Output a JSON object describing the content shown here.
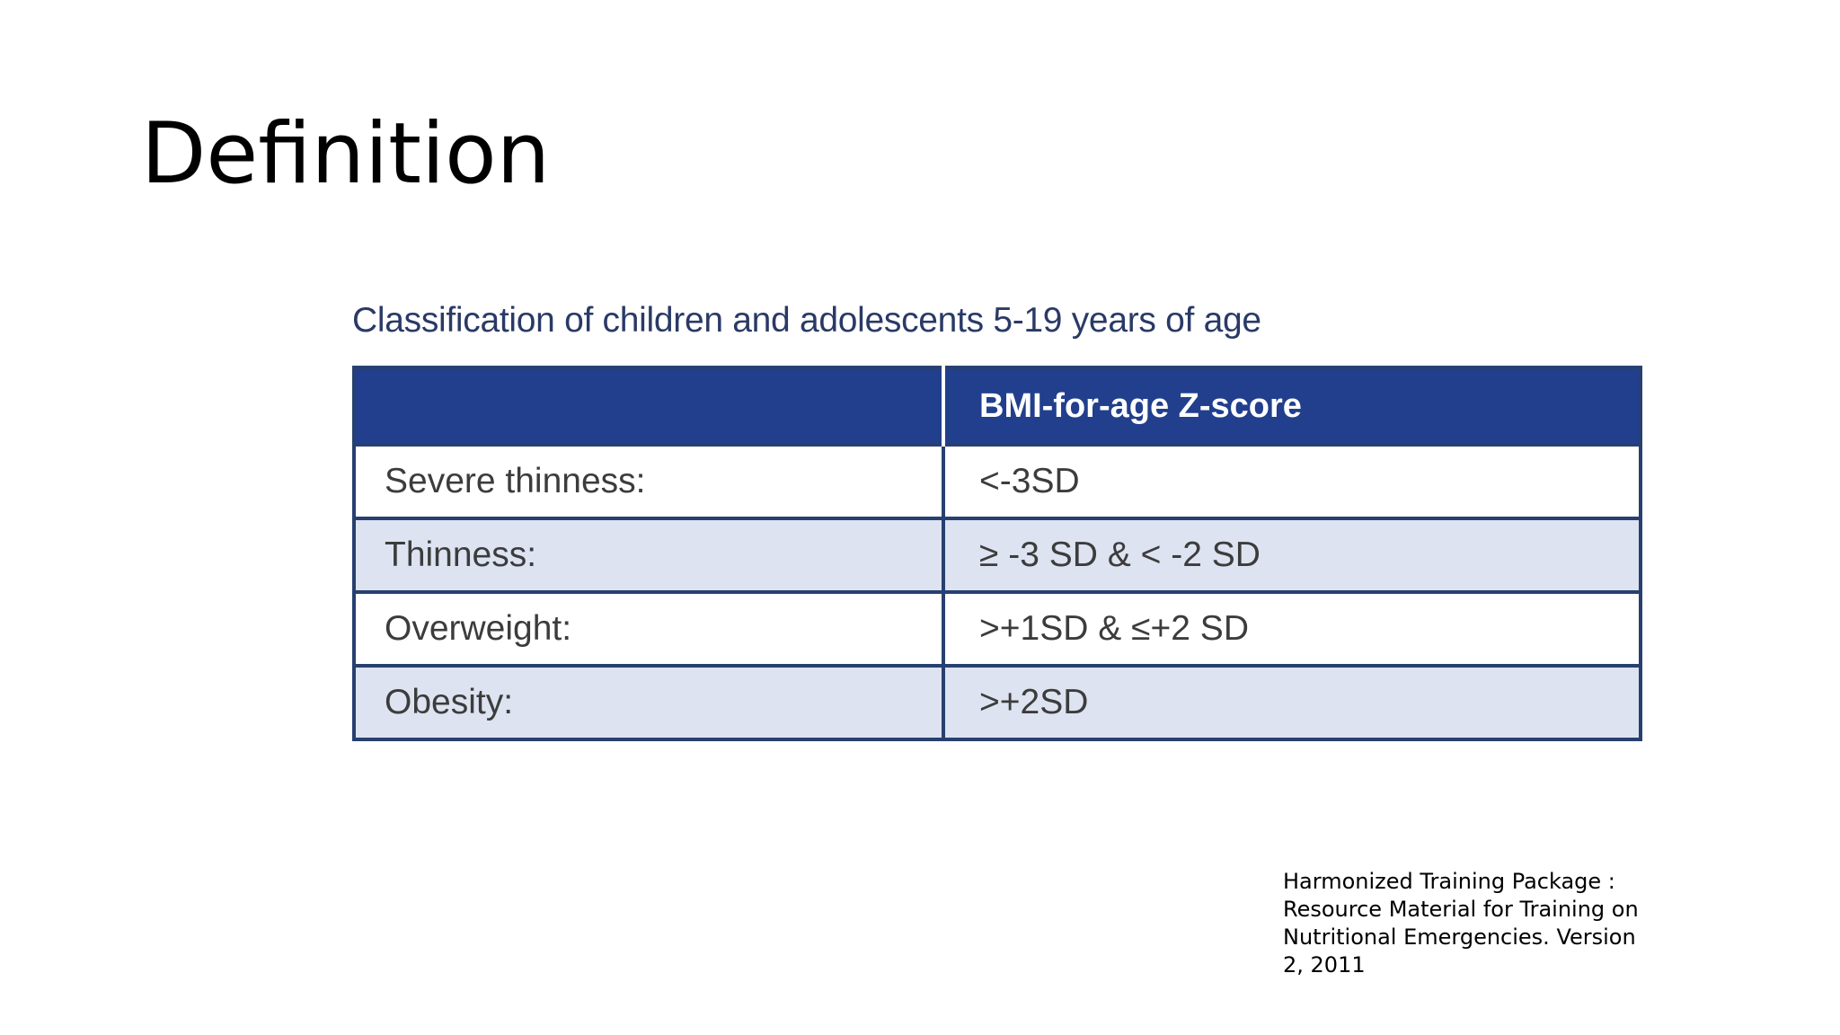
{
  "slide": {
    "title": "Definition"
  },
  "table": {
    "caption": "Classification of children and adolescents 5-19 years of age",
    "header": {
      "col1": "",
      "col2": "BMI-for-age Z-score"
    },
    "rows": [
      {
        "category": "Severe thinness:",
        "value": "<-3SD"
      },
      {
        "category": "Thinness:",
        "value": "≥ -3 SD & < -2 SD"
      },
      {
        "category": "Overweight:",
        "value": ">+1SD & ≤+2 SD"
      },
      {
        "category": "Obesity:",
        "value": ">+2SD"
      }
    ]
  },
  "reference": {
    "text": "Harmonized Training Package : Resource Material for Training on Nutritional Emergencies. Version 2, 2011"
  },
  "colors": {
    "header_background": "#213f8c",
    "shaded_row": "#dde3f1",
    "border": "#27406f"
  }
}
